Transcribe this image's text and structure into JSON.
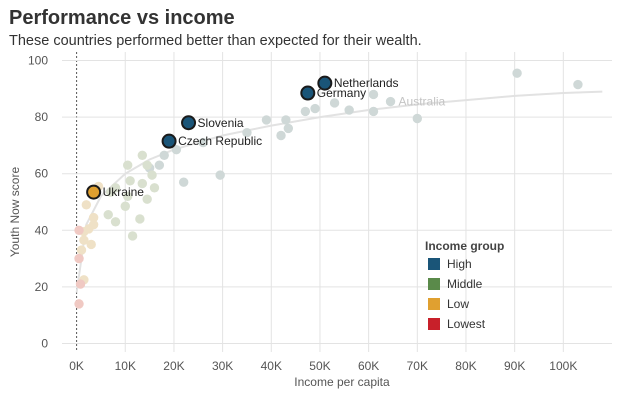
{
  "header": {
    "title": "Performance vs income",
    "subtitle": "These countries performed better than expected for their wealth."
  },
  "chart_data": {
    "type": "scatter",
    "title": "Performance vs income",
    "subtitle": "These countries performed better than expected for their wealth.",
    "xlabel": "Income per capita",
    "ylabel": "Youth Now score",
    "xlim": [
      -3000,
      110000
    ],
    "ylim": [
      -3,
      103
    ],
    "x_ticks": [
      {
        "value": 0,
        "label": "0K"
      },
      {
        "value": 10000,
        "label": "10K"
      },
      {
        "value": 20000,
        "label": "20K"
      },
      {
        "value": 30000,
        "label": "30K"
      },
      {
        "value": 40000,
        "label": "40K"
      },
      {
        "value": 50000,
        "label": "50K"
      },
      {
        "value": 60000,
        "label": "60K"
      },
      {
        "value": 70000,
        "label": "70K"
      },
      {
        "value": 80000,
        "label": "80K"
      },
      {
        "value": 90000,
        "label": "90K"
      },
      {
        "value": 100000,
        "label": "100K"
      }
    ],
    "y_ticks": [
      {
        "value": 0,
        "label": "0"
      },
      {
        "value": 20,
        "label": "20"
      },
      {
        "value": 40,
        "label": "40"
      },
      {
        "value": 60,
        "label": "60"
      },
      {
        "value": 80,
        "label": "80"
      },
      {
        "value": 100,
        "label": "100"
      }
    ],
    "grid": true,
    "legend_position": "bottom-right",
    "legend": {
      "title": "Income group",
      "items": [
        {
          "name": "High",
          "color": "#1a5578"
        },
        {
          "name": "Middle",
          "color": "#5a8a4a"
        },
        {
          "name": "Low",
          "color": "#e0a030"
        },
        {
          "name": "Lowest",
          "color": "#c8202a"
        }
      ]
    },
    "faded_colors": {
      "High": "#cfd8d7",
      "Middle": "#d9e0cf",
      "Low": "#efe1c6",
      "Lowest": "#f0c9c3"
    },
    "highlighted": [
      {
        "name": "Netherlands",
        "x": 51000,
        "y": 92,
        "group": "High"
      },
      {
        "name": "Germany",
        "x": 47500,
        "y": 88.5,
        "group": "High"
      },
      {
        "name": "Slovenia",
        "x": 23000,
        "y": 78,
        "group": "High"
      },
      {
        "name": "Czech Republic",
        "x": 19000,
        "y": 71.5,
        "group": "High"
      },
      {
        "name": "Ukraine",
        "x": 3500,
        "y": 53.5,
        "group": "Low"
      }
    ],
    "faint_labeled": [
      {
        "name": "Australia",
        "x": 64500,
        "y": 85.5,
        "group": "High"
      }
    ],
    "points": [
      {
        "x": 90500,
        "y": 95.5,
        "group": "High"
      },
      {
        "x": 103000,
        "y": 91.5,
        "group": "High"
      },
      {
        "x": 61000,
        "y": 88,
        "group": "High"
      },
      {
        "x": 61000,
        "y": 82,
        "group": "High"
      },
      {
        "x": 70000,
        "y": 79.5,
        "group": "High"
      },
      {
        "x": 56000,
        "y": 82.5,
        "group": "High"
      },
      {
        "x": 53000,
        "y": 85,
        "group": "High"
      },
      {
        "x": 49000,
        "y": 83,
        "group": "High"
      },
      {
        "x": 47000,
        "y": 82,
        "group": "High"
      },
      {
        "x": 43000,
        "y": 79,
        "group": "High"
      },
      {
        "x": 43500,
        "y": 76,
        "group": "High"
      },
      {
        "x": 42000,
        "y": 73.5,
        "group": "High"
      },
      {
        "x": 39000,
        "y": 79,
        "group": "High"
      },
      {
        "x": 35000,
        "y": 74.5,
        "group": "High"
      },
      {
        "x": 26000,
        "y": 71,
        "group": "High"
      },
      {
        "x": 20500,
        "y": 68.5,
        "group": "High"
      },
      {
        "x": 29500,
        "y": 59.5,
        "group": "High"
      },
      {
        "x": 22000,
        "y": 57,
        "group": "High"
      },
      {
        "x": 18000,
        "y": 66.5,
        "group": "High"
      },
      {
        "x": 15000,
        "y": 62,
        "group": "High"
      },
      {
        "x": 17000,
        "y": 63,
        "group": "High"
      },
      {
        "x": 13500,
        "y": 66.5,
        "group": "Middle"
      },
      {
        "x": 14500,
        "y": 63,
        "group": "Middle"
      },
      {
        "x": 15500,
        "y": 59.5,
        "group": "Middle"
      },
      {
        "x": 16000,
        "y": 55,
        "group": "Middle"
      },
      {
        "x": 13500,
        "y": 56.5,
        "group": "Middle"
      },
      {
        "x": 14500,
        "y": 51,
        "group": "Middle"
      },
      {
        "x": 11000,
        "y": 57.5,
        "group": "Middle"
      },
      {
        "x": 10500,
        "y": 63,
        "group": "Middle"
      },
      {
        "x": 8000,
        "y": 55,
        "group": "Middle"
      },
      {
        "x": 7000,
        "y": 53.5,
        "group": "Middle"
      },
      {
        "x": 10500,
        "y": 52,
        "group": "Middle"
      },
      {
        "x": 10000,
        "y": 48.5,
        "group": "Middle"
      },
      {
        "x": 6500,
        "y": 45.5,
        "group": "Middle"
      },
      {
        "x": 8000,
        "y": 43,
        "group": "Middle"
      },
      {
        "x": 13000,
        "y": 44,
        "group": "Middle"
      },
      {
        "x": 11500,
        "y": 38,
        "group": "Middle"
      },
      {
        "x": 4500,
        "y": 55.5,
        "group": "Low"
      },
      {
        "x": 2000,
        "y": 49,
        "group": "Low"
      },
      {
        "x": 3500,
        "y": 44.5,
        "group": "Low"
      },
      {
        "x": 3500,
        "y": 42,
        "group": "Low"
      },
      {
        "x": 2500,
        "y": 40.5,
        "group": "Low"
      },
      {
        "x": 1500,
        "y": 39.5,
        "group": "Low"
      },
      {
        "x": 1500,
        "y": 36.5,
        "group": "Low"
      },
      {
        "x": 1000,
        "y": 33,
        "group": "Low"
      },
      {
        "x": 3000,
        "y": 35,
        "group": "Low"
      },
      {
        "x": 1500,
        "y": 22.5,
        "group": "Low"
      },
      {
        "x": 500,
        "y": 40,
        "group": "Lowest"
      },
      {
        "x": 500,
        "y": 30,
        "group": "Lowest"
      },
      {
        "x": 800,
        "y": 21,
        "group": "Lowest"
      },
      {
        "x": 500,
        "y": 14,
        "group": "Lowest"
      }
    ],
    "trend_line": {
      "x": [
        0,
        2000,
        5000,
        10000,
        15000,
        20000,
        30000,
        40000,
        50000,
        60000,
        70000,
        80000,
        90000,
        100000,
        108000
      ],
      "y": [
        18,
        42,
        52,
        60,
        65,
        68.5,
        73.5,
        77,
        80,
        82.5,
        84.5,
        86,
        87.5,
        88.5,
        89
      ]
    }
  }
}
